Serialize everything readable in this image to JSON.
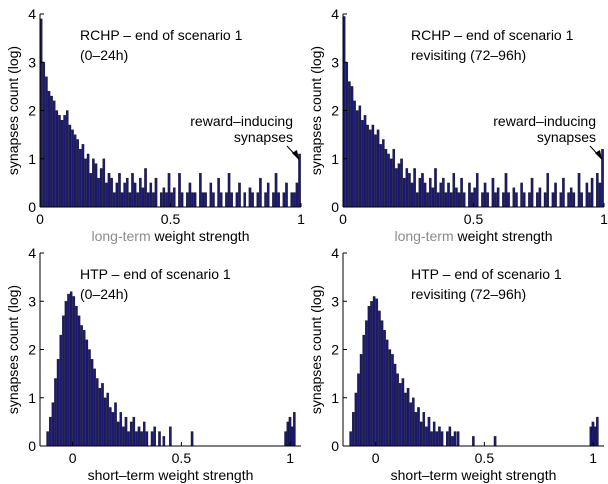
{
  "colors": {
    "bar": "#1b1a6e",
    "axis": "#000000",
    "label_accent": "#8c8c8c"
  },
  "chart_data": [
    {
      "type": "bar",
      "annotation_title": "RCHP – end of scenario 1",
      "annotation_subtitle": "(0–24h)",
      "arrow_label_1": "reward–inducing",
      "arrow_label_2": "synapses",
      "xlabel_prefix": "long-term",
      "xlabel_main": "weight strength",
      "ylabel": "synapses count (log)",
      "xlim": [
        0,
        1
      ],
      "ylim": [
        0,
        4
      ],
      "xticks": [
        0,
        0.5,
        1
      ],
      "xtick_labels": [
        "0",
        "0.5",
        "1"
      ],
      "yticks": [
        0,
        1,
        2,
        3,
        4
      ],
      "ytick_labels": [
        "0",
        "1",
        "2",
        "3",
        "4"
      ],
      "bin_width": 0.01,
      "x": [
        0.005,
        0.015,
        0.025,
        0.035,
        0.045,
        0.055,
        0.065,
        0.075,
        0.085,
        0.095,
        0.105,
        0.115,
        0.125,
        0.135,
        0.145,
        0.155,
        0.165,
        0.175,
        0.185,
        0.195,
        0.205,
        0.215,
        0.225,
        0.235,
        0.245,
        0.255,
        0.265,
        0.275,
        0.285,
        0.295,
        0.305,
        0.315,
        0.325,
        0.335,
        0.345,
        0.355,
        0.365,
        0.375,
        0.385,
        0.395,
        0.405,
        0.415,
        0.425,
        0.435,
        0.445,
        0.455,
        0.465,
        0.475,
        0.485,
        0.495,
        0.505,
        0.515,
        0.525,
        0.535,
        0.545,
        0.555,
        0.565,
        0.575,
        0.585,
        0.595,
        0.605,
        0.615,
        0.625,
        0.635,
        0.645,
        0.655,
        0.665,
        0.675,
        0.685,
        0.695,
        0.705,
        0.715,
        0.725,
        0.735,
        0.745,
        0.755,
        0.765,
        0.775,
        0.785,
        0.795,
        0.805,
        0.815,
        0.825,
        0.835,
        0.845,
        0.855,
        0.865,
        0.875,
        0.885,
        0.895,
        0.905,
        0.915,
        0.925,
        0.935,
        0.945,
        0.955,
        0.965,
        0.975,
        0.985,
        0.995
      ],
      "values": [
        3.9,
        3.0,
        2.7,
        2.4,
        2.3,
        2.2,
        2.0,
        1.9,
        1.8,
        1.9,
        2.0,
        1.7,
        1.6,
        1.5,
        1.4,
        1.2,
        1.3,
        1.0,
        1.1,
        0.7,
        1.0,
        0.9,
        0.6,
        0.8,
        1.0,
        0.5,
        0.7,
        0.6,
        0.3,
        0.5,
        0.7,
        0.3,
        0.5,
        0.6,
        0.3,
        0.7,
        0.5,
        0.3,
        0.6,
        0.4,
        0.8,
        0.3,
        0.5,
        0.3,
        0.6,
        0.0,
        0.3,
        0.4,
        0.3,
        0.7,
        0.3,
        0.4,
        0.0,
        0.7,
        0.3,
        0.0,
        0.3,
        0.5,
        0.3,
        0.3,
        0.0,
        0.7,
        0.3,
        0.3,
        0.0,
        0.5,
        0.3,
        0.0,
        0.6,
        0.3,
        0.0,
        0.3,
        0.7,
        0.3,
        0.0,
        0.3,
        0.5,
        0.0,
        0.3,
        0.0,
        0.4,
        0.3,
        0.0,
        0.3,
        0.6,
        0.0,
        0.3,
        0.5,
        0.0,
        0.3,
        0.7,
        0.3,
        0.0,
        0.3,
        0.5,
        0.0,
        0.3,
        0.3,
        0.5,
        1.1
      ]
    },
    {
      "type": "bar",
      "annotation_title": "RCHP – end of scenario 1",
      "annotation_subtitle": "revisiting (72–96h)",
      "arrow_label_1": "reward–inducing",
      "arrow_label_2": "synapses",
      "xlabel_prefix": "long-term",
      "xlabel_main": "weight strength",
      "ylabel": "synapses count (log)",
      "xlim": [
        0,
        1
      ],
      "ylim": [
        0,
        4
      ],
      "xticks": [
        0,
        0.5,
        1
      ],
      "xtick_labels": [
        "0",
        "0.5",
        "1"
      ],
      "yticks": [
        0,
        1,
        2,
        3,
        4
      ],
      "ytick_labels": [
        "0",
        "1",
        "2",
        "3",
        "4"
      ],
      "bin_width": 0.01,
      "x": [
        0.005,
        0.015,
        0.025,
        0.035,
        0.045,
        0.055,
        0.065,
        0.075,
        0.085,
        0.095,
        0.105,
        0.115,
        0.125,
        0.135,
        0.145,
        0.155,
        0.165,
        0.175,
        0.185,
        0.195,
        0.205,
        0.215,
        0.225,
        0.235,
        0.245,
        0.255,
        0.265,
        0.275,
        0.285,
        0.295,
        0.305,
        0.315,
        0.325,
        0.335,
        0.345,
        0.355,
        0.365,
        0.375,
        0.385,
        0.395,
        0.405,
        0.415,
        0.425,
        0.435,
        0.445,
        0.455,
        0.465,
        0.475,
        0.485,
        0.495,
        0.505,
        0.515,
        0.525,
        0.535,
        0.545,
        0.555,
        0.565,
        0.575,
        0.585,
        0.595,
        0.605,
        0.615,
        0.625,
        0.635,
        0.645,
        0.655,
        0.665,
        0.675,
        0.685,
        0.695,
        0.705,
        0.715,
        0.725,
        0.735,
        0.745,
        0.755,
        0.765,
        0.775,
        0.785,
        0.795,
        0.805,
        0.815,
        0.825,
        0.835,
        0.845,
        0.855,
        0.865,
        0.875,
        0.885,
        0.895,
        0.905,
        0.915,
        0.925,
        0.935,
        0.945,
        0.955,
        0.965,
        0.975,
        0.985,
        0.995
      ],
      "values": [
        3.95,
        3.0,
        2.6,
        2.5,
        2.2,
        2.0,
        2.1,
        1.8,
        1.9,
        1.7,
        1.6,
        1.7,
        1.5,
        1.6,
        1.3,
        1.4,
        1.2,
        1.1,
        1.0,
        1.2,
        0.8,
        0.9,
        1.0,
        0.6,
        0.8,
        0.7,
        0.5,
        0.8,
        0.3,
        0.6,
        0.7,
        0.5,
        0.3,
        0.6,
        0.4,
        0.8,
        0.3,
        0.5,
        0.6,
        0.3,
        0.5,
        0.3,
        0.7,
        0.4,
        0.3,
        0.6,
        0.3,
        0.0,
        0.5,
        0.3,
        0.4,
        0.7,
        0.0,
        0.3,
        0.5,
        0.3,
        0.0,
        0.6,
        0.3,
        0.4,
        0.0,
        0.3,
        0.7,
        0.3,
        0.0,
        0.4,
        0.3,
        0.0,
        0.5,
        0.3,
        0.0,
        0.3,
        0.6,
        0.0,
        0.3,
        0.4,
        0.0,
        0.3,
        0.7,
        0.0,
        0.3,
        0.5,
        0.0,
        0.3,
        0.6,
        0.0,
        0.3,
        0.4,
        0.3,
        0.0,
        0.7,
        0.3,
        0.0,
        0.5,
        0.3,
        0.6,
        0.0,
        0.7,
        0.5,
        1.2
      ]
    },
    {
      "type": "bar",
      "annotation_title": "HTP – end of scenario 1",
      "annotation_subtitle": "(0–24h)",
      "xlabel_prefix": "",
      "xlabel_main": "short–term weight strength",
      "ylabel": "synapses count (log)",
      "xlim": [
        -0.15,
        1.05
      ],
      "ylim": [
        0,
        4
      ],
      "xticks": [
        0,
        0.5,
        1
      ],
      "xtick_labels": [
        "0",
        "0.5",
        "1"
      ],
      "yticks": [
        0,
        1,
        2,
        3,
        4
      ],
      "ytick_labels": [
        "0",
        "1",
        "2",
        "3",
        "4"
      ],
      "bin_width": 0.012,
      "x": [
        -0.114,
        -0.102,
        -0.09,
        -0.078,
        -0.066,
        -0.054,
        -0.042,
        -0.03,
        -0.018,
        -0.006,
        0.006,
        0.018,
        0.03,
        0.042,
        0.054,
        0.066,
        0.078,
        0.09,
        0.102,
        0.114,
        0.126,
        0.138,
        0.15,
        0.162,
        0.174,
        0.186,
        0.198,
        0.21,
        0.222,
        0.234,
        0.246,
        0.258,
        0.27,
        0.282,
        0.294,
        0.306,
        0.318,
        0.33,
        0.342,
        0.354,
        0.366,
        0.378,
        0.4,
        0.42,
        0.45,
        0.55,
        0.98,
        0.99,
        1.0,
        1.01,
        1.02
      ],
      "values": [
        0.3,
        0.6,
        0.9,
        1.4,
        1.8,
        2.3,
        2.7,
        3.0,
        3.15,
        3.2,
        3.1,
        2.9,
        2.7,
        2.5,
        2.4,
        2.2,
        2.0,
        1.8,
        1.6,
        1.4,
        1.2,
        1.3,
        1.0,
        1.1,
        0.8,
        0.7,
        0.9,
        0.5,
        0.7,
        0.4,
        0.6,
        0.3,
        0.5,
        0.6,
        0.3,
        0.4,
        0.3,
        0.5,
        0.3,
        0.0,
        0.3,
        0.4,
        0.3,
        0.2,
        0.4,
        0.3,
        0.3,
        0.5,
        0.6,
        0.4,
        0.7
      ]
    },
    {
      "type": "bar",
      "annotation_title": "HTP – end of scenario 1",
      "annotation_subtitle": "revisiting (72–96h)",
      "xlabel_prefix": "",
      "xlabel_main": "short–term weight strength",
      "ylabel": "synapses count (log)",
      "xlim": [
        -0.15,
        1.05
      ],
      "ylim": [
        0,
        4
      ],
      "xticks": [
        0,
        0.5,
        1
      ],
      "xtick_labels": [
        "0",
        "0.5",
        "1"
      ],
      "yticks": [
        0,
        1,
        2,
        3,
        4
      ],
      "ytick_labels": [
        "0",
        "1",
        "2",
        "3",
        "4"
      ],
      "bin_width": 0.012,
      "x": [
        -0.114,
        -0.102,
        -0.09,
        -0.078,
        -0.066,
        -0.054,
        -0.042,
        -0.03,
        -0.018,
        -0.006,
        0.006,
        0.018,
        0.03,
        0.042,
        0.054,
        0.066,
        0.078,
        0.09,
        0.102,
        0.114,
        0.126,
        0.138,
        0.15,
        0.162,
        0.174,
        0.186,
        0.198,
        0.21,
        0.222,
        0.234,
        0.246,
        0.258,
        0.27,
        0.282,
        0.294,
        0.306,
        0.318,
        0.33,
        0.342,
        0.354,
        0.366,
        0.38,
        0.45,
        0.55,
        0.99,
        1.0,
        1.01,
        1.02
      ],
      "values": [
        0.3,
        0.7,
        1.1,
        1.5,
        1.9,
        2.3,
        2.6,
        2.9,
        3.0,
        3.1,
        3.05,
        2.8,
        2.6,
        2.4,
        2.2,
        2.0,
        1.9,
        1.7,
        1.5,
        1.3,
        1.4,
        1.1,
        1.2,
        0.9,
        1.0,
        0.7,
        0.8,
        0.5,
        0.7,
        0.4,
        0.6,
        0.3,
        0.5,
        0.3,
        0.4,
        0.3,
        0.0,
        0.3,
        0.4,
        0.2,
        0.3,
        0.3,
        0.2,
        0.2,
        0.4,
        0.5,
        0.4,
        0.6
      ]
    }
  ]
}
